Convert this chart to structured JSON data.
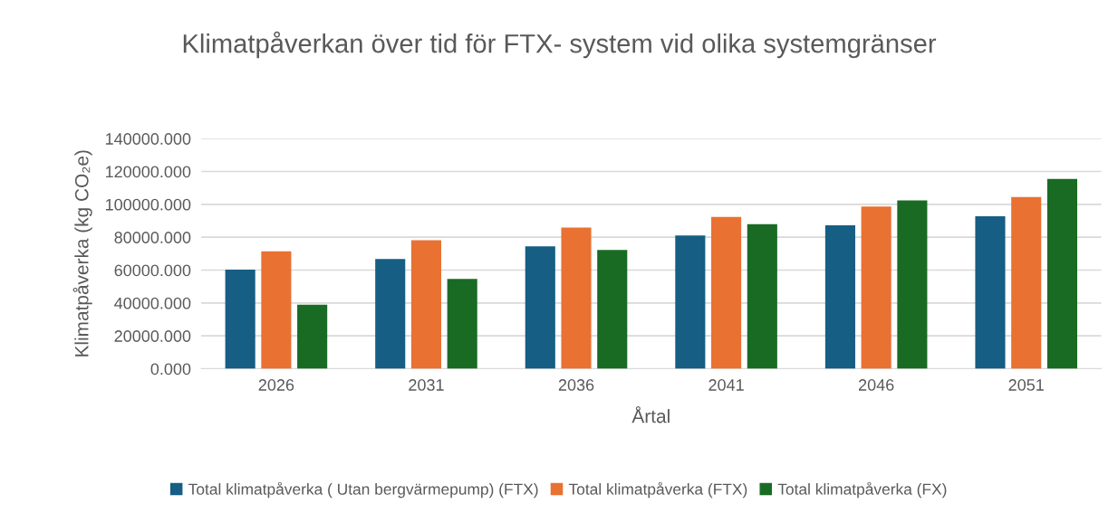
{
  "chart_data": {
    "type": "bar",
    "title": "Klimatpåverkan över tid för FTX- system vid olika systemgränser",
    "xlabel": "Årtal",
    "ylabel": "Klimatpåverka (kg CO₂e)",
    "categories": [
      "2026",
      "2031",
      "2036",
      "2041",
      "2046",
      "2051"
    ],
    "series": [
      {
        "name": "Total klimatpåverka ( Utan bergvärmepump) (FTX)",
        "color": "#165e83",
        "values": [
          60300,
          66700,
          74400,
          81000,
          87300,
          92700
        ]
      },
      {
        "name": "Total klimatpåverka (FTX)",
        "color": "#e97132",
        "values": [
          71400,
          78200,
          85900,
          92300,
          98700,
          104400
        ]
      },
      {
        "name": "Total klimatpåverka (FX)",
        "color": "#196b24",
        "values": [
          38900,
          54600,
          72200,
          87900,
          102400,
          115500
        ]
      }
    ],
    "ylim": [
      0,
      140000
    ],
    "yticks": [
      {
        "value": 0,
        "label": "0.000"
      },
      {
        "value": 20000,
        "label": "20000.000"
      },
      {
        "value": 40000,
        "label": "40000.000"
      },
      {
        "value": 60000,
        "label": "60000.000"
      },
      {
        "value": 80000,
        "label": "80000.000"
      },
      {
        "value": 100000,
        "label": "100000.000"
      },
      {
        "value": 120000,
        "label": "120000.000"
      },
      {
        "value": 140000,
        "label": "140000.000"
      }
    ],
    "grid": "y",
    "legend": "bottom"
  }
}
